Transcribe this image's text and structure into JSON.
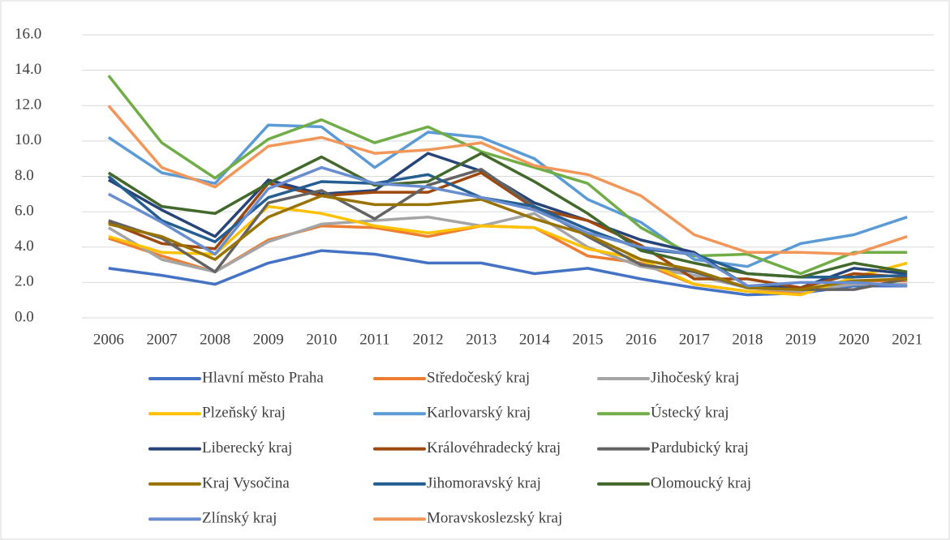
{
  "chart_data": {
    "type": "line",
    "x": [
      "2006",
      "2007",
      "2008",
      "2009",
      "2010",
      "2011",
      "2012",
      "2013",
      "2014",
      "2015",
      "2016",
      "2017",
      "2018",
      "2019",
      "2020",
      "2021"
    ],
    "ylim": [
      0,
      16
    ],
    "yticks": [
      {
        "value": 0,
        "label": "0.0"
      },
      {
        "value": 2,
        "label": "2.0"
      },
      {
        "value": 4,
        "label": "4.0"
      },
      {
        "value": 6,
        "label": "6.0"
      },
      {
        "value": 8,
        "label": "8.0"
      },
      {
        "value": 10,
        "label": "10.0"
      },
      {
        "value": 12,
        "label": "12.0"
      },
      {
        "value": 14,
        "label": "14.0"
      },
      {
        "value": 16,
        "label": "16.0"
      }
    ],
    "grid": true,
    "legend": "bottom",
    "series": [
      {
        "name": "Hlavní město Praha",
        "color": "#4472c4",
        "values": [
          2.8,
          2.4,
          1.9,
          3.1,
          3.8,
          3.6,
          3.1,
          3.1,
          2.5,
          2.8,
          2.2,
          1.7,
          1.3,
          1.4,
          1.8,
          1.8
        ]
      },
      {
        "name": "Středočeský kraj",
        "color": "#ed7d31",
        "values": [
          4.5,
          3.5,
          2.6,
          4.4,
          5.2,
          5.1,
          4.6,
          5.2,
          5.1,
          3.5,
          3.1,
          1.9,
          1.5,
          1.4,
          2.1,
          2.1
        ]
      },
      {
        "name": "Jihočeský kraj",
        "color": "#a5a5a5",
        "values": [
          5.1,
          3.3,
          2.6,
          4.3,
          5.3,
          5.5,
          5.7,
          5.2,
          5.9,
          4.0,
          2.9,
          2.4,
          1.7,
          1.5,
          1.9,
          1.9
        ]
      },
      {
        "name": "Plzeňský kraj",
        "color": "#ffc000",
        "values": [
          4.6,
          3.7,
          3.6,
          6.3,
          5.9,
          5.2,
          4.8,
          5.2,
          5.1,
          3.9,
          3.3,
          1.9,
          1.5,
          1.3,
          2.3,
          3.1
        ]
      },
      {
        "name": "Karlovarský kraj",
        "color": "#5b9bd5",
        "values": [
          10.2,
          8.2,
          7.6,
          10.9,
          10.8,
          8.5,
          10.5,
          10.2,
          9.0,
          6.7,
          5.4,
          3.3,
          2.9,
          4.2,
          4.7,
          5.7
        ]
      },
      {
        "name": "Ústecký kraj",
        "color": "#70ad47",
        "values": [
          13.7,
          9.9,
          7.9,
          10.1,
          11.2,
          9.9,
          10.8,
          9.4,
          8.5,
          7.6,
          5.1,
          3.5,
          3.6,
          2.5,
          3.7,
          3.7
        ]
      },
      {
        "name": "Liberecký kraj",
        "color": "#264478",
        "values": [
          7.8,
          6.1,
          4.6,
          7.8,
          7.0,
          7.2,
          9.3,
          8.3,
          6.5,
          5.5,
          4.4,
          3.7,
          1.8,
          1.7,
          2.8,
          2.5
        ]
      },
      {
        "name": "Královéhradecký kraj",
        "color": "#9e480e",
        "values": [
          5.4,
          4.2,
          3.9,
          7.6,
          6.9,
          7.1,
          7.1,
          8.2,
          6.2,
          5.5,
          4.1,
          2.2,
          2.2,
          1.7,
          2.5,
          2.3
        ]
      },
      {
        "name": "Pardubický kraj",
        "color": "#636363",
        "values": [
          5.5,
          4.5,
          2.6,
          6.5,
          7.2,
          5.6,
          7.5,
          8.4,
          6.3,
          4.6,
          3.0,
          2.6,
          1.7,
          1.6,
          1.6,
          2.2
        ]
      },
      {
        "name": "Kraj Vysočina",
        "color": "#997300",
        "values": [
          5.3,
          4.6,
          3.3,
          5.7,
          6.9,
          6.4,
          6.4,
          6.7,
          5.6,
          4.7,
          3.3,
          2.7,
          1.7,
          1.6,
          2.1,
          2.2
        ]
      },
      {
        "name": "Jihomoravský kraj",
        "color": "#255e91",
        "values": [
          8.0,
          5.5,
          4.3,
          6.8,
          7.7,
          7.6,
          8.1,
          6.8,
          6.3,
          5.0,
          3.9,
          3.6,
          2.5,
          2.3,
          2.3,
          2.4
        ]
      },
      {
        "name": "Olomoucký kraj",
        "color": "#43682b",
        "values": [
          8.2,
          6.3,
          5.9,
          7.6,
          9.1,
          7.5,
          7.7,
          9.3,
          7.7,
          5.9,
          3.8,
          3.1,
          2.5,
          2.3,
          3.1,
          2.6
        ]
      },
      {
        "name": "Zlínský kraj",
        "color": "#698ed0",
        "values": [
          7.0,
          5.4,
          3.6,
          7.3,
          8.5,
          7.6,
          7.4,
          6.8,
          6.1,
          4.8,
          4.0,
          3.6,
          1.8,
          2.0,
          2.0,
          1.8
        ]
      },
      {
        "name": "Moravskoslezský kraj",
        "color": "#f1975a",
        "values": [
          12.0,
          8.5,
          7.4,
          9.7,
          10.2,
          9.3,
          9.5,
          9.9,
          8.6,
          8.1,
          6.9,
          4.7,
          3.7,
          3.7,
          3.6,
          4.6
        ]
      }
    ]
  }
}
